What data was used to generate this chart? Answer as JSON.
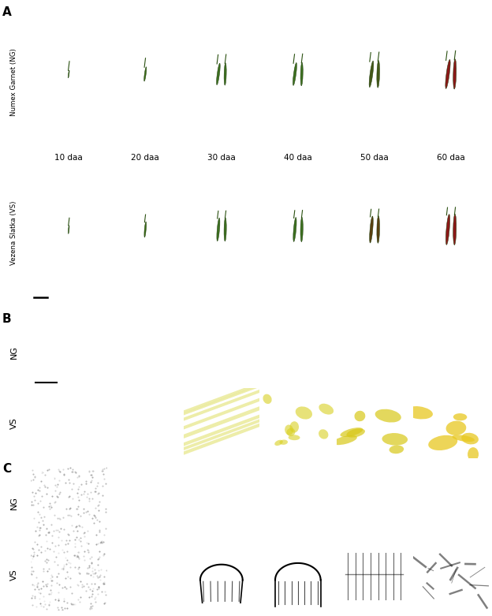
{
  "panel_labels": [
    "A",
    "B",
    "C"
  ],
  "time_points": [
    "10 daa",
    "20 daa",
    "30 daa",
    "40 daa",
    "50 daa",
    "60 daa"
  ],
  "side_labels_A_top": "Numex Garnet (NG)",
  "side_labels_A_bot": "Vezena Slatka (VS)",
  "side_label_NG": "NG",
  "side_label_VS": "VS",
  "background_color": "#ffffff",
  "sidebar_color": "#cccccc",
  "n_cols": 6,
  "fig_width": 6.24,
  "fig_height": 7.81,
  "dpi": 100,
  "B_NG_colors": [
    "#4a9020",
    "#4a9020",
    "#3d7e16",
    "#5a9820",
    "#b0b030",
    "#cc1212"
  ],
  "B_VS_colors": [
    "#6aac28",
    "#5aa020",
    "#8cb028",
    "#c8b818",
    "#181008",
    "#8a1a08"
  ],
  "C_NG_colors": [
    "#686868",
    "#545454",
    "#545454",
    "#545454",
    "#545454",
    "#545454"
  ],
  "C_VS_colors": [
    "#787878",
    "#888888",
    "#909090",
    "#909090",
    "#a0a0a0",
    "#b0b0b0"
  ],
  "pepper_ng_colors": [
    "#3d6e18",
    "#3d6e18",
    "#3d7020",
    "#3d7020",
    "#445818",
    "#8b1818"
  ],
  "pepper_vs_colors": [
    "#3d6e18",
    "#3d6e18",
    "#3d7020",
    "#3d7020",
    "#5a4010",
    "#8b1818"
  ]
}
